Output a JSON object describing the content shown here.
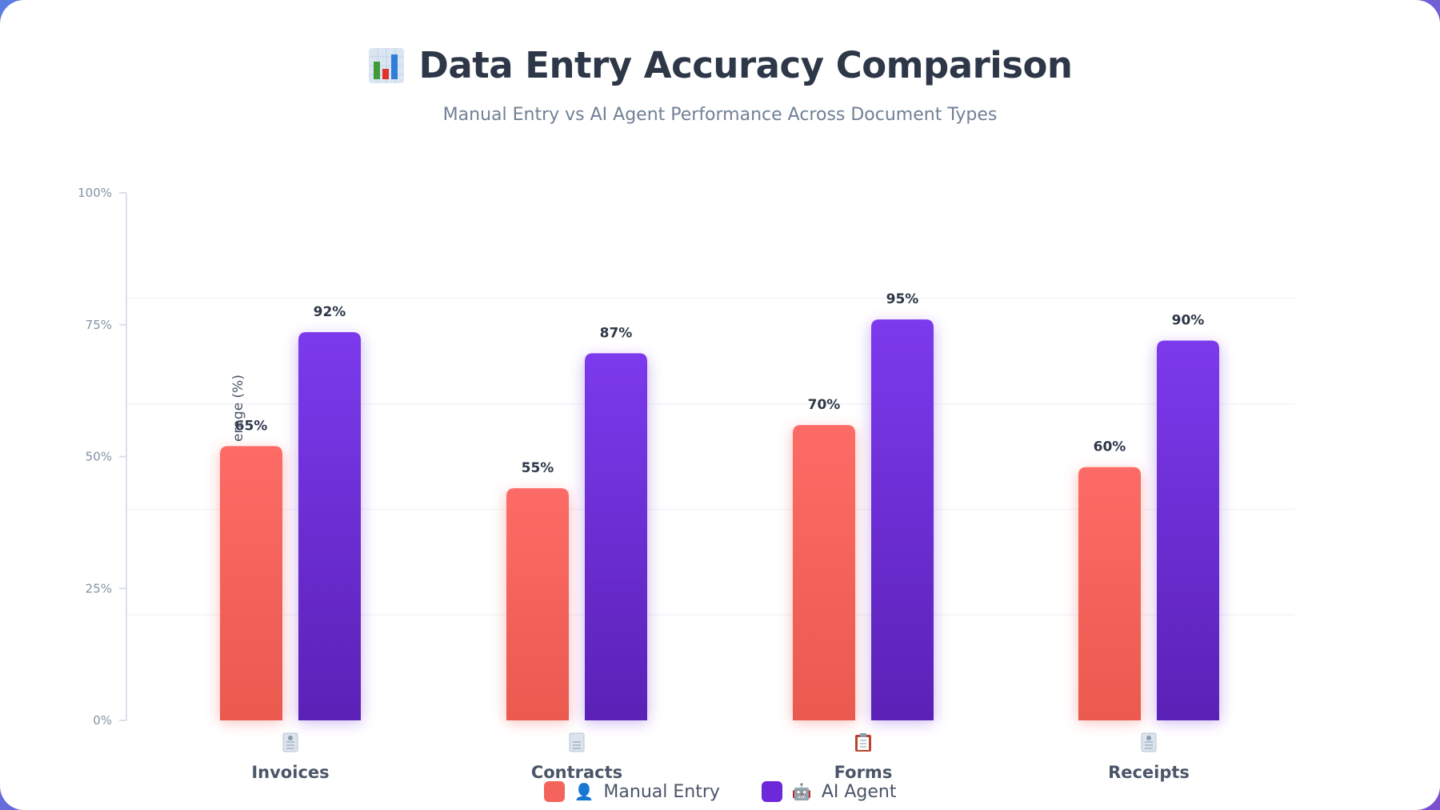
{
  "header": {
    "title": "Data Entry Accuracy Comparison",
    "subtitle": "Manual Entry vs AI Agent Performance Across Document Types",
    "title_icon": "bar-chart-icon"
  },
  "legend": {
    "items": [
      {
        "label": "Manual Entry",
        "emoji": "👤",
        "color": "#f4645c"
      },
      {
        "label": "AI Agent",
        "emoji": "🤖",
        "color": "#6d28d9"
      }
    ]
  },
  "chart_data": {
    "type": "bar",
    "title": "Data Entry Accuracy Comparison",
    "subtitle": "Manual Entry vs AI Agent Performance Across Document Types",
    "categories": [
      "Invoices",
      "Contracts",
      "Forms",
      "Receipts"
    ],
    "category_icons": [
      "document-icon",
      "page-icon",
      "clipboard-icon",
      "receipt-icon"
    ],
    "series": [
      {
        "name": "Manual Entry",
        "values": [
          65,
          55,
          70,
          60
        ],
        "labels": [
          "65%",
          "55%",
          "70%",
          "60%"
        ],
        "color": "#f4645c"
      },
      {
        "name": "AI Agent",
        "values": [
          92,
          87,
          95,
          90
        ],
        "labels": [
          "92%",
          "87%",
          "95%",
          "90%"
        ],
        "color": "#6d28d9"
      }
    ],
    "ylabel_visible": "erage (%)",
    "yticks": [
      0,
      25,
      50,
      75,
      100
    ],
    "ytick_labels": [
      "0%",
      "25%",
      "50%",
      "75%",
      "100%"
    ],
    "axis_max": 125,
    "ylim": [
      0,
      100
    ],
    "grid": true,
    "legend_position": "bottom-center"
  }
}
